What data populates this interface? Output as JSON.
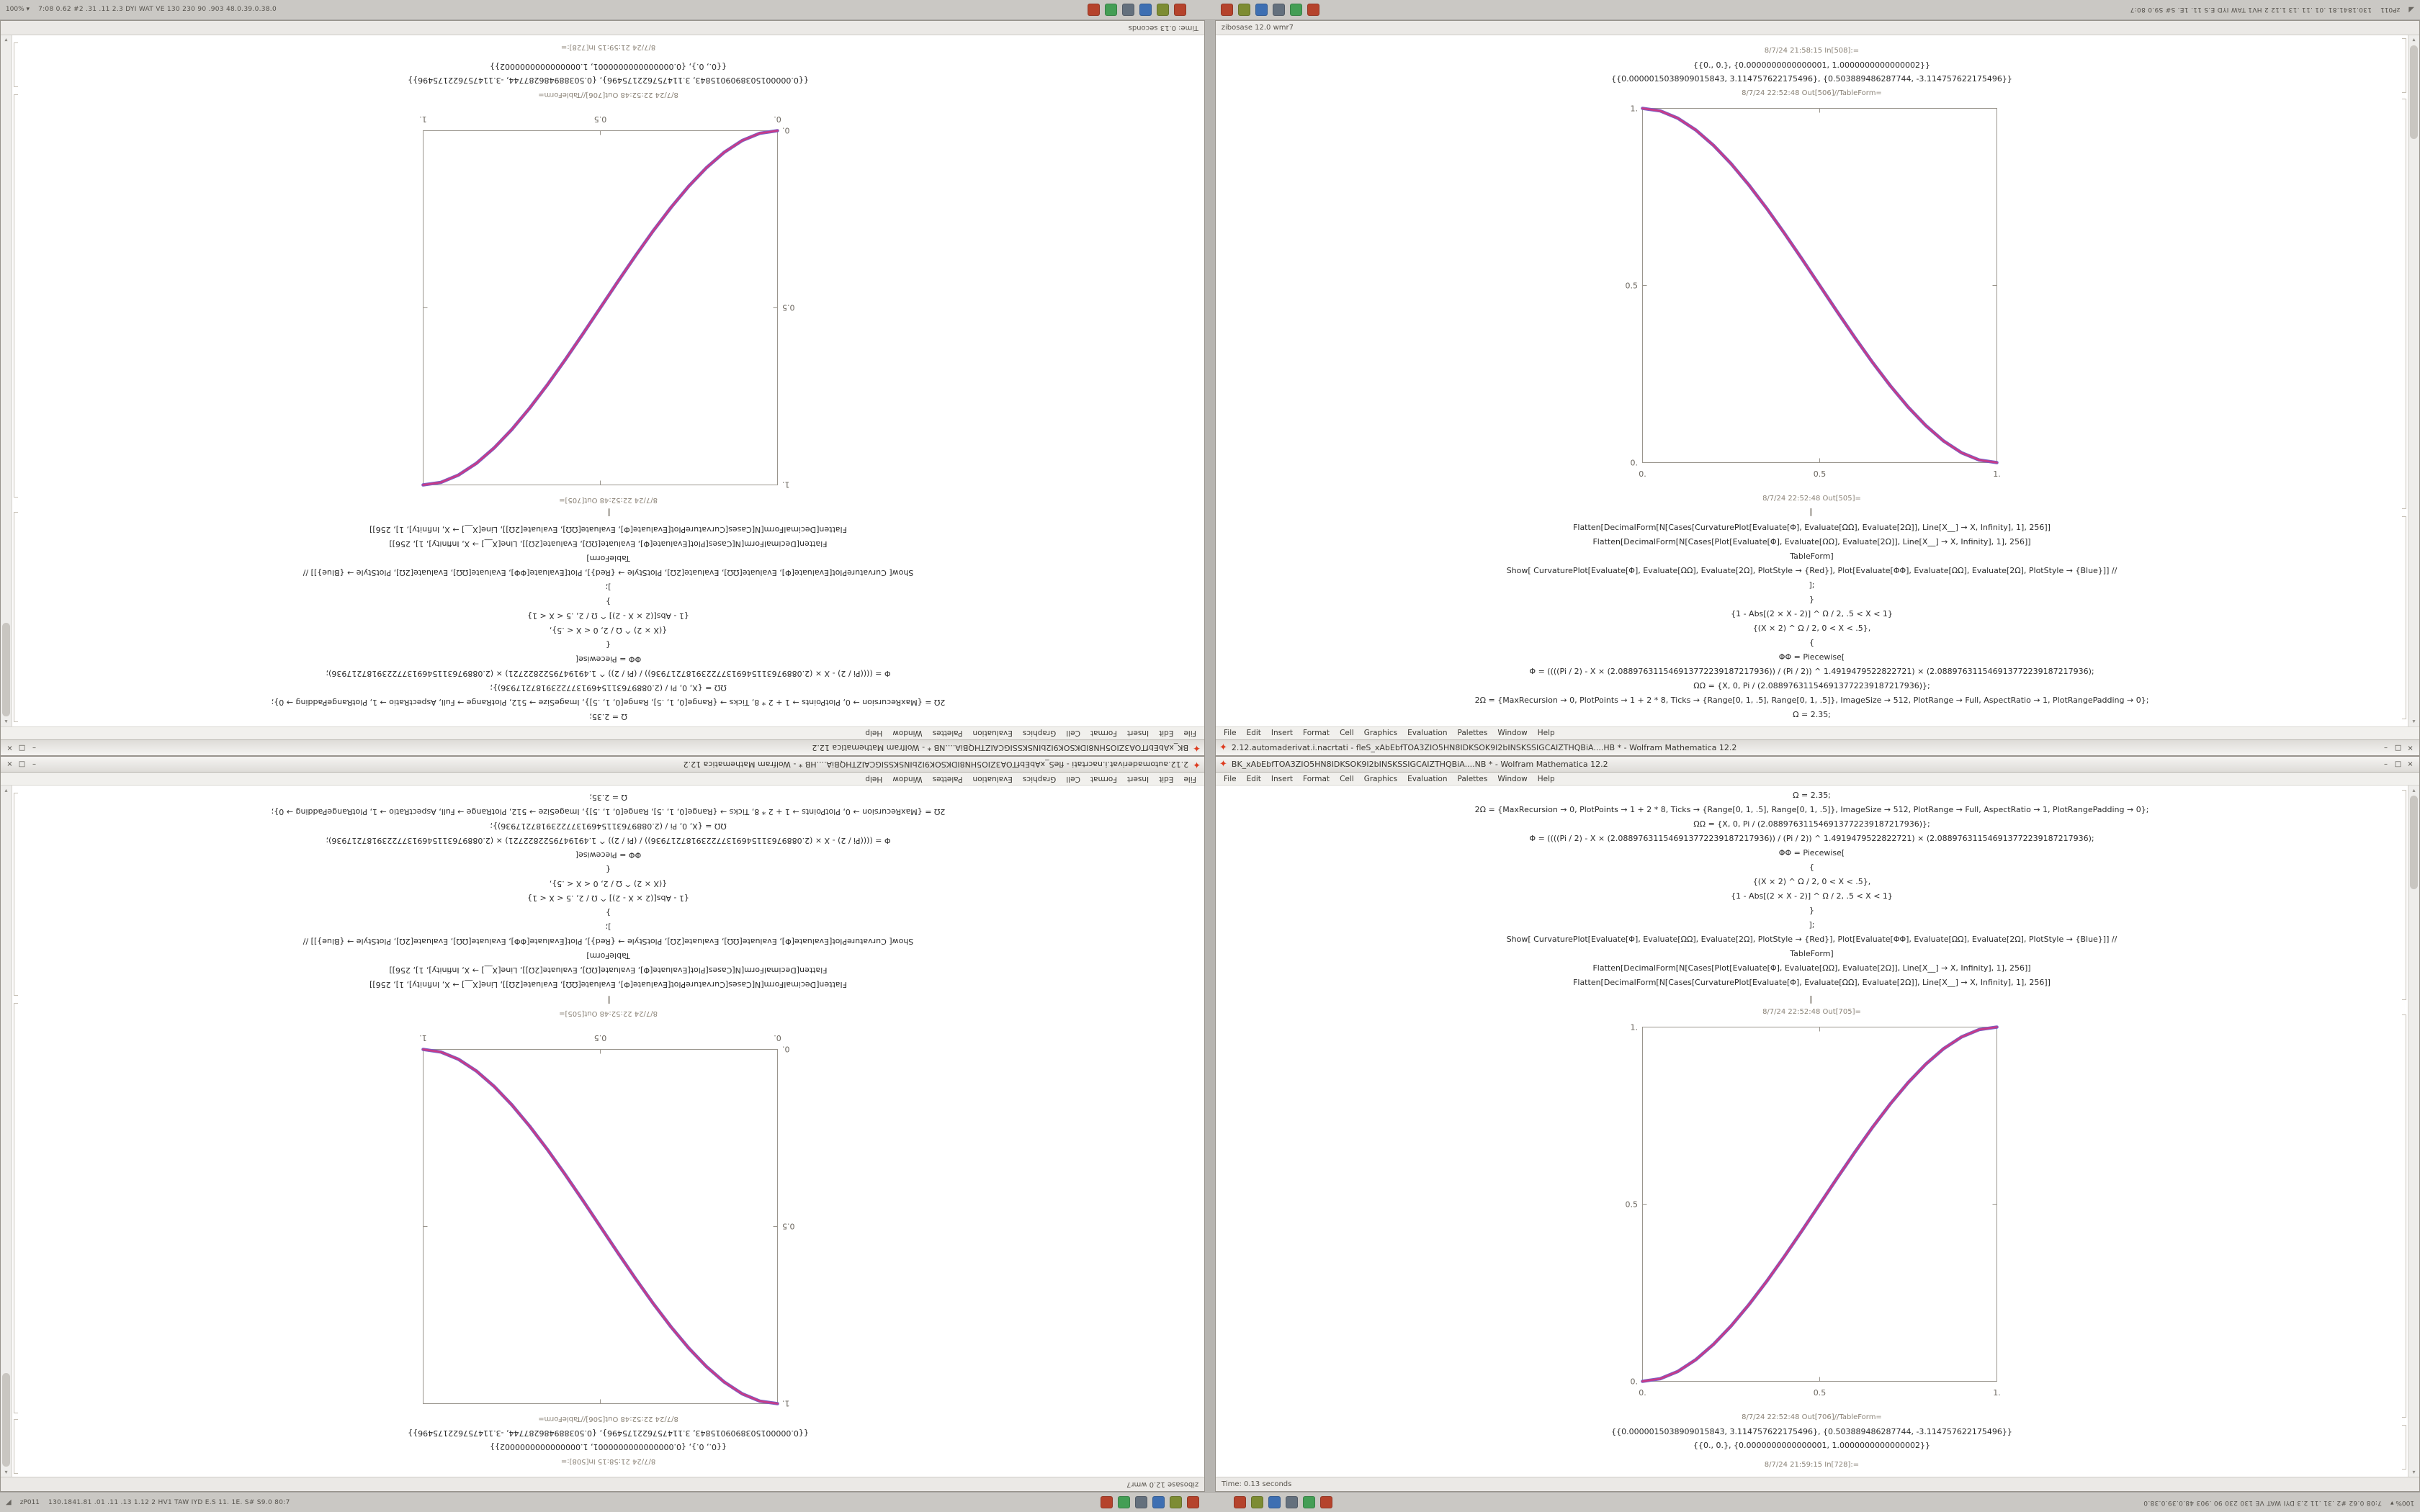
{
  "app": "Wolfram Mathematica 12.2",
  "glyphs": {
    "app_icon": "✦",
    "scroll_up": "▴",
    "scroll_down": "▾",
    "corner": "◢"
  },
  "window_controls": {
    "minimize": "–",
    "maximize": "□",
    "close": "×"
  },
  "menu": {
    "items": [
      "File",
      "Edit",
      "Insert",
      "Format",
      "Cell",
      "Graphics",
      "Evaluation",
      "Palettes",
      "Window",
      "Help"
    ]
  },
  "desktop": {
    "taskbar": {
      "corner_glyph": "◢",
      "zoom_left": "zP011",
      "zoom_right": "100% ▾",
      "ticker_left": "130.1841.81 .01 .11 .13 1.12 2 HV1 TAW IYD E.S 11. 1E. S# S9.0 80:7",
      "ticker_right": "7:08 0.62 #2 .31 .11 2.3 DYI WAT VE 130 230 90 .903 48.0.39.0.38.0",
      "icons": [
        {
          "name": "close-red",
          "color": "#b5432c"
        },
        {
          "name": "olive-app",
          "color": "#7d8c33"
        },
        {
          "name": "blue-doc",
          "color": "#3e6fb2"
        },
        {
          "name": "slate-app",
          "color": "#64707d"
        },
        {
          "name": "green-app",
          "color": "#449e55"
        },
        {
          "name": "red-app",
          "color": "#b5432c"
        }
      ]
    }
  },
  "windows": {
    "right": {
      "title": "BK_xAbEbfTOA3ZIO5HN8IDKSOK9I2bINSKSSIGCAIZTHQBiA....NB * - Wolfram Mathematica 12.2",
      "status": "Time: 0.13 seconds",
      "cells": {
        "code_lines": [
          "Ω = 2.35;",
          "2Ω = {MaxRecursion → 0, PlotPoints → 1 + 2 * 8, Ticks → {Range[0, 1, .5], Range[0, 1, .5]}, ImageSize → 512, PlotRange → Full, AspectRatio → 1, PlotRangePadding → 0};",
          "ΩΩ = {X, 0, Pi / (2.088976311546913772239187217936)};",
          "Φ = ((((Pi / 2) - X × (2.088976311546913772239187217936)) / (Pi / 2)) ^ 1.4919479522822721) × (2.088976311546913772239187217936);",
          "ΦΦ = Piecewise[",
          "{",
          "{(X × 2) ^ Ω / 2, 0 < X < .5},",
          "{1 - Abs[(2 × X - 2)] ^ Ω / 2, .5 < X < 1}",
          "}",
          "];",
          "Show[ CurvaturePlot[Evaluate[Φ], Evaluate[ΩΩ], Evaluate[2Ω], PlotStyle → {Red}], Plot[Evaluate[ΦΦ], Evaluate[ΩΩ], Evaluate[2Ω], PlotStyle → {Blue}]] //",
          "TableForm]",
          "Flatten[DecimalForm[N[Cases[Plot[Evaluate[Φ], Evaluate[ΩΩ], Evaluate[2Ω]], Line[X__] → X, Infinity], 1], 256]]",
          "Flatten[DecimalForm[N[Cases[CurvaturePlot[Evaluate[Φ], Evaluate[ΩΩ], Evaluate[2Ω]], Line[X__] → X, Infinity], 1], 256]]"
        ],
        "divider": "‖",
        "out_plot_label": "8/7/24 22:52:48 Out[705]=",
        "out_table_label": "8/7/24 22:52:48 Out[706]//TableForm=",
        "numbers": [
          "{{0.0000015038909015843, 3.114757622175496}, {0.503889486287744, -3.114757622175496}}",
          "{{0., 0.}, {0.0000000000000001, 1.0000000000000002}}"
        ],
        "in_label": "8/7/24 21:59:15 In[728]:="
      }
    },
    "left": {
      "title": "2.12.automaderivat.i.nacrtati - fleS_xAbEbfTOA3ZIO5HN8IDKSOK9I2bINSKSSIGCAIZTHQBiA....HB * - Wolfram Mathematica 12.2",
      "status": "zibosase 12.0 wmr7",
      "cells": {
        "in_label": "8/7/24 21:58:15 In[508]:=",
        "numbers": [
          "{{0., 0.}, {0.0000000000000001, 1.0000000000000002}}",
          "{{0.0000015038909015843, 3.114757622175496}, {0.503889486287744, -3.114757622175496}}"
        ],
        "out_table_label": "8/7/24 22:52:48 Out[506]//TableForm=",
        "out_plot_label": "8/7/24 22:52:48 Out[505]=",
        "divider": "‖",
        "code_lines": [
          "Flatten[DecimalForm[N[Cases[CurvaturePlot[Evaluate[Φ], Evaluate[ΩΩ], Evaluate[2Ω]], Line[X__] → X, Infinity], 1], 256]]",
          "Flatten[DecimalForm[N[Cases[Plot[Evaluate[Φ], Evaluate[ΩΩ], Evaluate[2Ω]], Line[X__] → X, Infinity], 1], 256]]",
          "TableForm]",
          "Show[ CurvaturePlot[Evaluate[Φ], Evaluate[ΩΩ], Evaluate[2Ω], PlotStyle → {Red}], Plot[Evaluate[ΦΦ], Evaluate[ΩΩ], Evaluate[2Ω], PlotStyle → {Blue}]] //",
          "];",
          "}",
          "{1 - Abs[(2 × X - 2)] ^ Ω / 2, .5 < X < 1}",
          "{(X × 2) ^ Ω / 2, 0 < X < .5},",
          "{",
          "ΦΦ = Piecewise[",
          "Φ = ((((Pi / 2) - X × (2.088976311546913772239187217936)) / (Pi / 2)) ^ 1.4919479522822721) × (2.088976311546913772239187217936);",
          "ΩΩ = {X, 0, Pi / (2.088976311546913772239187217936)};",
          "2Ω = {MaxRecursion → 0, PlotPoints → 1 + 2 * 8, Ticks → {Range[0, 1, .5], Range[0, 1, .5]}, ImageSize → 512, PlotRange → Full, AspectRatio → 1, PlotRangePadding → 0};",
          "Ω = 2.35;"
        ]
      }
    }
  },
  "chart_data": [
    {
      "type": "line",
      "title": "Out[705] — smoothstep curve, increasing (right notebook)",
      "xlabel": "",
      "ylabel": "",
      "x_range": [
        0,
        1
      ],
      "y_range": [
        0,
        1
      ],
      "frame": true,
      "grid": false,
      "legend": "none",
      "x_ticks": [
        0,
        0.5,
        1
      ],
      "x_tick_labels": [
        "0.",
        "0.5",
        "1."
      ],
      "y_ticks": [
        0,
        0.5,
        1
      ],
      "y_tick_labels": [
        "0.",
        "0.5",
        "1."
      ],
      "x": [
        0,
        0.05,
        0.1,
        0.15,
        0.2,
        0.25,
        0.3,
        0.35,
        0.4,
        0.45,
        0.5,
        0.55,
        0.6,
        0.65,
        0.7,
        0.75,
        0.8,
        0.85,
        0.9,
        0.95,
        1
      ],
      "series": [
        {
          "name": "Plot (Blue)",
          "color": "#7b5fc5",
          "width": 4.6,
          "y": [
            0,
            0.0073,
            0.028,
            0.0608,
            0.104,
            0.1563,
            0.216,
            0.2818,
            0.352,
            0.4253,
            0.5,
            0.5748,
            0.648,
            0.7183,
            0.784,
            0.8438,
            0.896,
            0.9393,
            0.972,
            0.9928,
            1
          ]
        },
        {
          "name": "CurvaturePlot (Red)",
          "color": "#c93a86",
          "width": 2.6,
          "y": [
            0,
            0.0073,
            0.028,
            0.0608,
            0.104,
            0.1563,
            0.216,
            0.2818,
            0.352,
            0.4253,
            0.5,
            0.5748,
            0.648,
            0.7183,
            0.784,
            0.8438,
            0.896,
            0.9393,
            0.972,
            0.9928,
            1
          ]
        }
      ]
    },
    {
      "type": "line",
      "title": "Out[505] — smoothstep curve, decreasing (left notebook)",
      "xlabel": "",
      "ylabel": "",
      "x_range": [
        0,
        1
      ],
      "y_range": [
        0,
        1
      ],
      "frame": true,
      "grid": false,
      "legend": "none",
      "x_ticks": [
        0,
        0.5,
        1
      ],
      "x_tick_labels": [
        "0.",
        "0.5",
        "1."
      ],
      "y_ticks": [
        0,
        0.5,
        1
      ],
      "y_tick_labels": [
        "0.",
        "0.5",
        "1."
      ],
      "x": [
        0,
        0.05,
        0.1,
        0.15,
        0.2,
        0.25,
        0.3,
        0.35,
        0.4,
        0.45,
        0.5,
        0.55,
        0.6,
        0.65,
        0.7,
        0.75,
        0.8,
        0.85,
        0.9,
        0.95,
        1
      ],
      "series": [
        {
          "name": "Plot (Blue)",
          "color": "#7b5fc5",
          "width": 4.6,
          "y": [
            1,
            0.9928,
            0.972,
            0.9393,
            0.896,
            0.8438,
            0.784,
            0.7183,
            0.648,
            0.5748,
            0.5,
            0.4253,
            0.352,
            0.2818,
            0.216,
            0.1563,
            0.104,
            0.0608,
            0.028,
            0.0073,
            0
          ]
        },
        {
          "name": "CurvaturePlot (Red)",
          "color": "#c93a86",
          "width": 2.6,
          "y": [
            1,
            0.9928,
            0.972,
            0.9393,
            0.896,
            0.8438,
            0.784,
            0.7183,
            0.648,
            0.5748,
            0.5,
            0.4253,
            0.352,
            0.2818,
            0.216,
            0.1563,
            0.104,
            0.0608,
            0.028,
            0.0073,
            0
          ]
        }
      ]
    }
  ]
}
